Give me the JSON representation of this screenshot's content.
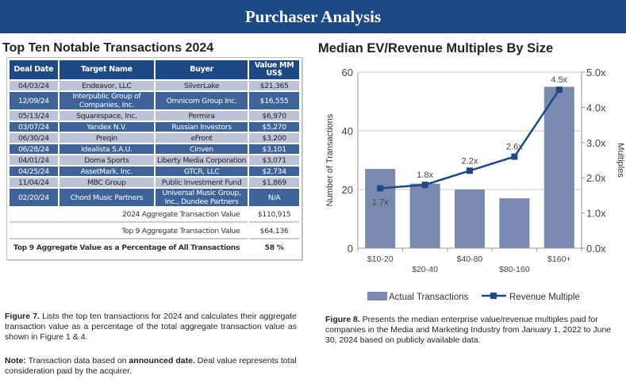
{
  "banner": {
    "title": "Purchaser Analysis"
  },
  "left": {
    "title": "Top Ten Notable Transactions 2024",
    "headers": [
      "Deal Date",
      "Target Name",
      "Buyer",
      "Value MM US$"
    ],
    "rows": [
      [
        "04/03/24",
        "Endeavor, LLC",
        "SilverLake",
        "$21,365"
      ],
      [
        "12/09/24",
        "Interpublic Group of Companies, Inc.",
        "Omnicom Group Inc.",
        "$16,555"
      ],
      [
        "05/13/24",
        "Squarespace, Inc.",
        "Permira",
        "$6,970"
      ],
      [
        "03/07/24",
        "Yandex N.V.",
        "Russian Investors",
        "$5,270"
      ],
      [
        "06/30/24",
        "Preqin",
        "eFront",
        "$3,200"
      ],
      [
        "06/28/24",
        "Idealista S.A.U.",
        "Cinven",
        "$3,101"
      ],
      [
        "04/01/24",
        "Doma Sports",
        "Liberty Media Corporation",
        "$3,071"
      ],
      [
        "04/25/24",
        "AssetMark, Inc.",
        "GTCR, LLC",
        "$2,734"
      ],
      [
        "11/04/24",
        "MBC Group",
        "Public Investment Fund",
        "$1,869"
      ],
      [
        "02/20/24",
        "Chord Music Partners",
        "Universal Music Group, Inc., Dundee Partners",
        "N/A"
      ]
    ],
    "summary": [
      {
        "label": "2024 Aggregate Transaction Value",
        "value": "$110,915"
      },
      {
        "label": "Top 9 Aggregate Transaction Value",
        "value": "$64,136"
      },
      {
        "label": "Top 9 Aggregate Value as a Percentage of All Transactions",
        "value": "58 %"
      }
    ],
    "caption_fig": "Figure 7.",
    "caption": " Lists the top ten transactions for 2024 and calculates their aggregate transaction value as a percentage of the total aggregate transaction value as shown in Figure 1 & 4.",
    "note_label": "Note:",
    "note_a": " Transaction data based on ",
    "note_bold": "announced date.",
    "note_b": " Deal value represents total consideration paid by the acquirer."
  },
  "right": {
    "caption_fig": "Figure 8.",
    "caption": " Presents the median enterprise value/revenue multiples paid for companies in the Media and Marketing Industry from January 1, 2022 to June 30, 2024 based on publicly available data."
  },
  "colors": {
    "bar": "#7a89b0",
    "line": "#1d4a85",
    "header": "#1d4a85"
  },
  "chart_data": {
    "type": "bar+line",
    "title": "Median EV/Revenue Multiples By Size",
    "categories": [
      "$10-20",
      "$20-40",
      "$40-80",
      "$80-160",
      "$160+"
    ],
    "series": [
      {
        "name": "Actual Transactions",
        "type": "bar",
        "axis": "left",
        "values": [
          27,
          22,
          20,
          17,
          55
        ]
      },
      {
        "name": "Revenue Multiple",
        "type": "line",
        "axis": "right",
        "values": [
          1.7,
          1.8,
          2.2,
          2.6,
          4.5
        ],
        "labels": [
          "1.7x",
          "1.8x",
          "2.2x",
          "2.6x",
          "4.5x"
        ]
      }
    ],
    "ylabel": "Number of Transactions",
    "ylim": [
      0,
      60
    ],
    "yticks": [
      "0",
      "20",
      "40",
      "60"
    ],
    "y2label": "Multiples",
    "y2lim": [
      0,
      5
    ],
    "y2ticks": [
      "0.0x",
      "1.0x",
      "2.0x",
      "3.0x",
      "4.0x",
      "5.0x"
    ],
    "grid": true,
    "legend": "bottom"
  }
}
